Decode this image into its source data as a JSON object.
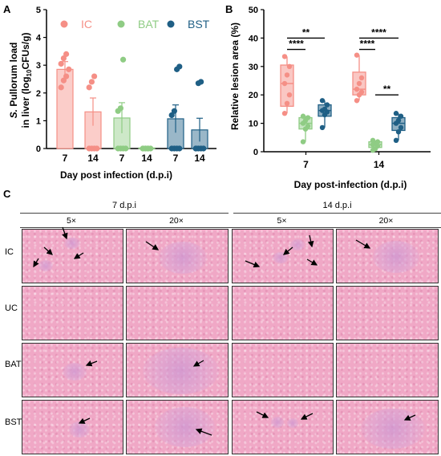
{
  "panels": {
    "a": "A",
    "b": "B",
    "c": "C"
  },
  "panelA": {
    "legend": [
      {
        "label": "IC",
        "color": "#f58f86"
      },
      {
        "label": "BAT",
        "color": "#8fcc84"
      },
      {
        "label": "BST",
        "color": "#1f5f85"
      }
    ],
    "ylabel_line1_italic": "S.",
    "ylabel_line1_rest": " Pullorum load",
    "ylabel_line2_pre": "in liver (log",
    "ylabel_line2_sub": "10",
    "ylabel_line2_post": "CFUs/g)",
    "xlabel": "Day post infection (d.p.i)",
    "yticks": [
      "0",
      "1",
      "2",
      "3",
      "4",
      "5"
    ],
    "xticks": [
      "7",
      "14",
      "7",
      "14",
      "7",
      "14"
    ]
  },
  "panelB": {
    "ylabel": "Relative lesion area (%)",
    "xlabel": "Day post-infection (d.p.i)",
    "yticks": [
      "0",
      "10",
      "20",
      "30",
      "40",
      "50"
    ],
    "xticks": [
      "7",
      "14"
    ],
    "sig": [
      "**",
      "****",
      "****",
      "****",
      "**"
    ]
  },
  "panelC": {
    "headers": [
      "7 d.p.i",
      "14 d.p.i"
    ],
    "mags": [
      "5×",
      "20×",
      "5×",
      "20×"
    ],
    "rows": [
      "IC",
      "UC",
      "BAT",
      "BST"
    ]
  },
  "chart_data": [
    {
      "type": "bar",
      "title": "",
      "xlabel": "Day post infection (d.p.i)",
      "ylabel": "S. Pullorum load in liver (log10CFUs/g)",
      "ylim": [
        0,
        5
      ],
      "legend_position": "top",
      "categories": [
        "7",
        "14"
      ],
      "series": [
        {
          "name": "IC",
          "color": "#f58f86",
          "values": [
            2.85,
            1.32
          ],
          "errors": [
            0.28,
            0.5
          ],
          "points": [
            [
              2.2,
              2.45,
              2.6,
              2.85,
              3.05,
              3.25,
              3.4
            ],
            [
              0,
              0,
              0,
              0,
              2.2,
              2.4,
              2.6
            ]
          ]
        },
        {
          "name": "BAT",
          "color": "#8fcc84",
          "values": [
            1.1,
            0.02
          ],
          "errors": [
            0.55,
            0.02
          ],
          "points": [
            [
              0,
              0,
              0,
              0,
              1.35,
              1.45,
              3.2
            ],
            [
              0,
              0,
              0,
              0,
              0,
              0,
              0
            ]
          ]
        },
        {
          "name": "BST",
          "color": "#1f5f85",
          "values": [
            1.07,
            0.67
          ],
          "errors": [
            0.5,
            0.42
          ],
          "points": [
            [
              0,
              0,
              0,
              0,
              1.2,
              1.35,
              2.85,
              2.95
            ],
            [
              0,
              0,
              0,
              0,
              0,
              2.35,
              2.4
            ]
          ]
        }
      ]
    },
    {
      "type": "box",
      "title": "",
      "xlabel": "Day post-infection (d.p.i)",
      "ylabel": "Relative lesion area (%)",
      "ylim": [
        0,
        50
      ],
      "categories": [
        "7",
        "14"
      ],
      "series": [
        {
          "name": "IC",
          "color": "#f58f86",
          "boxes": [
            {
              "min": 13.5,
              "q1": 16,
              "median": 24,
              "q3": 30.5,
              "max": 33.5,
              "points": [
                13.5,
                17,
                20,
                24,
                27,
                30,
                33.5
              ]
            },
            {
              "min": 18,
              "q1": 20,
              "median": 22,
              "q3": 28,
              "max": 34,
              "points": [
                18,
                20,
                21,
                22,
                24,
                26,
                34
              ]
            }
          ]
        },
        {
          "name": "BAT",
          "color": "#8fcc84",
          "boxes": [
            {
              "min": 3.5,
              "q1": 8,
              "median": 10,
              "q3": 12,
              "max": 12.5,
              "points": [
                3.5,
                8,
                9,
                10,
                11,
                12,
                12.5
              ]
            },
            {
              "min": 0.5,
              "q1": 1.5,
              "median": 2.5,
              "q3": 3.5,
              "max": 4,
              "points": [
                0.5,
                1,
                2,
                2.5,
                3,
                3.5,
                4
              ]
            }
          ]
        },
        {
          "name": "BST",
          "color": "#1f5f85",
          "boxes": [
            {
              "min": 8.5,
              "q1": 12.5,
              "median": 14.5,
              "q3": 16.5,
              "max": 18,
              "points": [
                8.5,
                13,
                14,
                14.5,
                15,
                16.5,
                18
              ]
            },
            {
              "min": 4,
              "q1": 7.5,
              "median": 10,
              "q3": 12,
              "max": 13.5,
              "points": [
                4,
                7,
                8.5,
                10,
                11,
                12.5,
                13.5
              ]
            }
          ]
        }
      ]
    }
  ]
}
